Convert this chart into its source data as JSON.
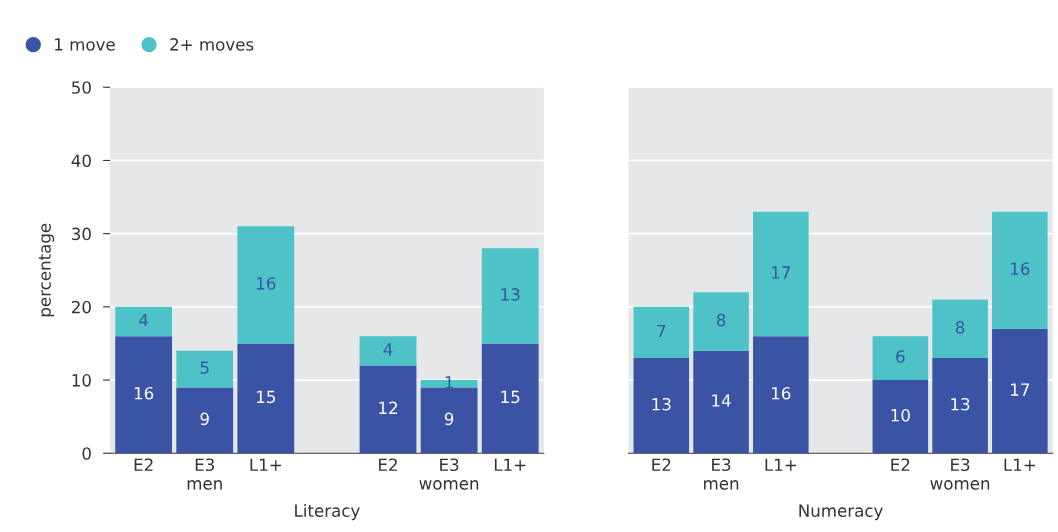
{
  "chart_data": [
    {
      "type": "bar",
      "stacked": true,
      "xlabel": "Literacy",
      "ylabel": "percentage",
      "categories": [
        "E2",
        "E3\nmen",
        "L1+",
        null,
        "E2",
        "E3\nwomen",
        "L1+"
      ],
      "ylim": [
        0,
        50
      ],
      "yticks": [
        0,
        10,
        20,
        30,
        40,
        50
      ],
      "grid": "y",
      "legend": "top left",
      "data_labels": true,
      "series": [
        {
          "name": "1 move",
          "color": "#3a53a4",
          "values": [
            16,
            9,
            15,
            null,
            12,
            9,
            15
          ]
        },
        {
          "name": "2+ moves",
          "color": "#4dc3c8",
          "values": [
            4,
            5,
            16,
            null,
            4,
            1,
            13
          ]
        }
      ]
    },
    {
      "type": "bar",
      "stacked": true,
      "xlabel": "Numeracy",
      "categories": [
        "E2",
        "E3\nmen",
        "L1+",
        null,
        "E2",
        "E3\nwomen",
        "L1+"
      ],
      "ylim": [
        0,
        50
      ],
      "yticks": [
        0,
        10,
        20,
        30,
        40,
        50
      ],
      "grid": "y",
      "tick_labels": "x",
      "data_labels": true,
      "series": [
        {
          "color": "#3a53a4",
          "values": [
            13,
            14,
            16,
            null,
            10,
            13,
            17
          ]
        },
        {
          "color": "#4dc3c8",
          "values": [
            7,
            8,
            17,
            null,
            6,
            8,
            16
          ]
        }
      ]
    }
  ]
}
